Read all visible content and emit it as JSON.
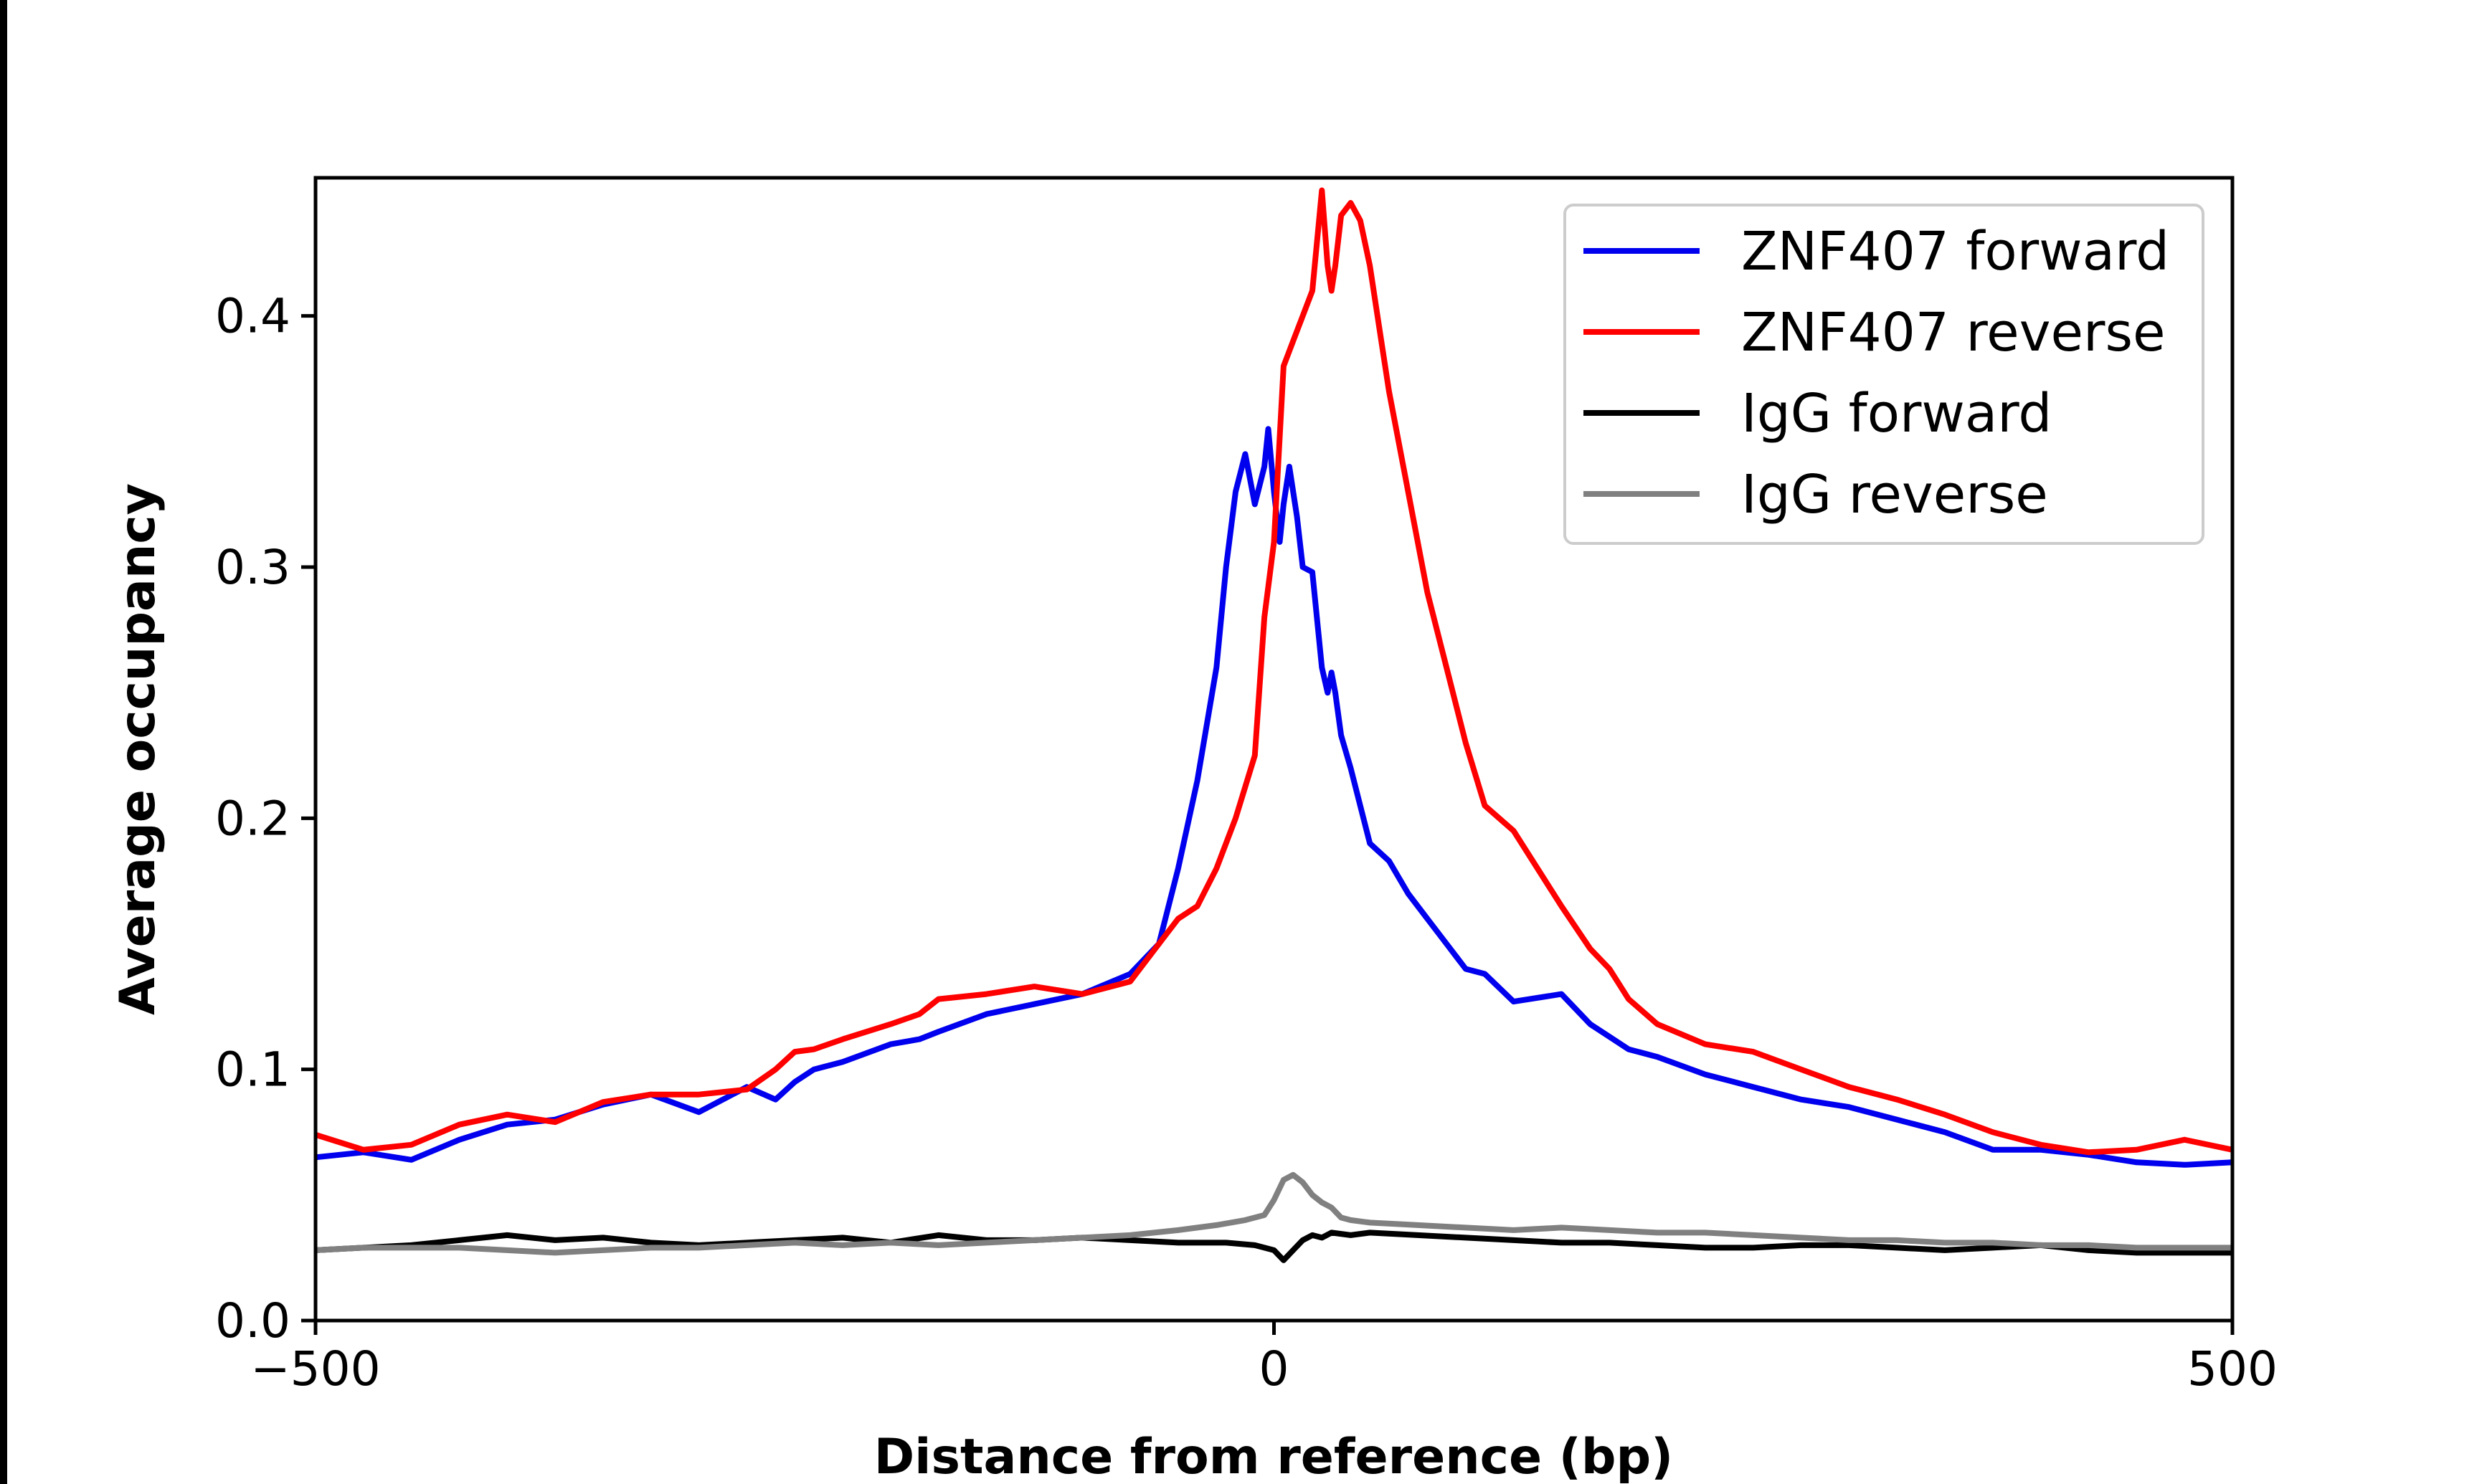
{
  "chart_data": {
    "type": "line",
    "xlabel": "Distance from reference (bp)",
    "ylabel": "Average occupancy",
    "xlim": [
      -500,
      500
    ],
    "ylim": [
      0,
      0.455
    ],
    "x_ticks": [
      -500,
      0,
      500
    ],
    "x_tick_labels": [
      "−500",
      "0",
      "500"
    ],
    "y_ticks": [
      0.0,
      0.1,
      0.2,
      0.3,
      0.4
    ],
    "y_tick_labels": [
      "0.0",
      "0.1",
      "0.2",
      "0.3",
      "0.4"
    ],
    "grid": false,
    "legend_position": "top-right",
    "series": [
      {
        "name": "ZNF407 forward",
        "color": "#0000ee",
        "x": [
          -500,
          -475,
          -450,
          -425,
          -400,
          -375,
          -350,
          -325,
          -300,
          -275,
          -260,
          -250,
          -240,
          -225,
          -200,
          -185,
          -175,
          -150,
          -125,
          -100,
          -75,
          -60,
          -50,
          -40,
          -30,
          -25,
          -20,
          -15,
          -10,
          -5,
          -3,
          0,
          3,
          5,
          8,
          12,
          15,
          20,
          25,
          28,
          30,
          32,
          35,
          40,
          50,
          60,
          70,
          80,
          90,
          100,
          110,
          125,
          150,
          165,
          175,
          185,
          200,
          225,
          250,
          275,
          300,
          325,
          350,
          375,
          400,
          425,
          450,
          475,
          500
        ],
        "y": [
          0.065,
          0.067,
          0.064,
          0.072,
          0.078,
          0.08,
          0.086,
          0.09,
          0.083,
          0.093,
          0.088,
          0.095,
          0.1,
          0.103,
          0.11,
          0.112,
          0.115,
          0.122,
          0.126,
          0.13,
          0.138,
          0.15,
          0.18,
          0.215,
          0.26,
          0.3,
          0.33,
          0.345,
          0.325,
          0.34,
          0.355,
          0.33,
          0.31,
          0.325,
          0.34,
          0.32,
          0.3,
          0.298,
          0.26,
          0.25,
          0.258,
          0.25,
          0.233,
          0.22,
          0.19,
          0.183,
          0.17,
          0.16,
          0.15,
          0.14,
          0.138,
          0.127,
          0.13,
          0.118,
          0.113,
          0.108,
          0.105,
          0.098,
          0.093,
          0.088,
          0.085,
          0.08,
          0.075,
          0.068,
          0.068,
          0.066,
          0.063,
          0.062,
          0.063
        ]
      },
      {
        "name": "ZNF407 reverse",
        "color": "#ff0000",
        "x": [
          -500,
          -475,
          -450,
          -425,
          -400,
          -375,
          -350,
          -325,
          -300,
          -275,
          -260,
          -250,
          -240,
          -225,
          -200,
          -185,
          -175,
          -150,
          -125,
          -100,
          -75,
          -60,
          -50,
          -40,
          -30,
          -20,
          -10,
          -5,
          0,
          5,
          10,
          15,
          20,
          25,
          28,
          30,
          32,
          35,
          40,
          45,
          50,
          55,
          60,
          70,
          80,
          90,
          100,
          110,
          125,
          150,
          165,
          175,
          185,
          200,
          225,
          250,
          275,
          300,
          325,
          350,
          375,
          400,
          425,
          450,
          475,
          500
        ],
        "y": [
          0.074,
          0.068,
          0.07,
          0.078,
          0.082,
          0.079,
          0.087,
          0.09,
          0.09,
          0.092,
          0.1,
          0.107,
          0.108,
          0.112,
          0.118,
          0.122,
          0.128,
          0.13,
          0.133,
          0.13,
          0.135,
          0.15,
          0.16,
          0.165,
          0.18,
          0.2,
          0.225,
          0.28,
          0.31,
          0.38,
          0.39,
          0.4,
          0.41,
          0.45,
          0.42,
          0.41,
          0.42,
          0.44,
          0.445,
          0.438,
          0.42,
          0.395,
          0.37,
          0.33,
          0.29,
          0.26,
          0.23,
          0.205,
          0.195,
          0.165,
          0.148,
          0.14,
          0.128,
          0.118,
          0.11,
          0.107,
          0.1,
          0.093,
          0.088,
          0.082,
          0.075,
          0.07,
          0.067,
          0.068,
          0.072,
          0.068
        ]
      },
      {
        "name": "IgG forward",
        "color": "#000000",
        "x": [
          -500,
          -475,
          -450,
          -425,
          -400,
          -375,
          -350,
          -325,
          -300,
          -275,
          -250,
          -225,
          -200,
          -175,
          -150,
          -125,
          -100,
          -75,
          -50,
          -25,
          -10,
          0,
          5,
          10,
          15,
          20,
          25,
          30,
          40,
          50,
          75,
          100,
          125,
          150,
          175,
          200,
          225,
          250,
          275,
          300,
          325,
          350,
          375,
          400,
          425,
          450,
          475,
          500
        ],
        "y": [
          0.028,
          0.029,
          0.03,
          0.032,
          0.034,
          0.032,
          0.033,
          0.031,
          0.03,
          0.031,
          0.032,
          0.033,
          0.031,
          0.034,
          0.032,
          0.032,
          0.033,
          0.032,
          0.031,
          0.031,
          0.03,
          0.028,
          0.024,
          0.028,
          0.032,
          0.034,
          0.033,
          0.035,
          0.034,
          0.035,
          0.034,
          0.033,
          0.032,
          0.031,
          0.031,
          0.03,
          0.029,
          0.029,
          0.03,
          0.03,
          0.029,
          0.028,
          0.029,
          0.03,
          0.028,
          0.027,
          0.027,
          0.027
        ]
      },
      {
        "name": "IgG reverse",
        "color": "#808080",
        "x": [
          -500,
          -475,
          -450,
          -425,
          -400,
          -375,
          -350,
          -325,
          -300,
          -275,
          -250,
          -225,
          -200,
          -175,
          -150,
          -125,
          -100,
          -75,
          -50,
          -30,
          -15,
          -5,
          0,
          5,
          10,
          15,
          20,
          25,
          30,
          35,
          40,
          50,
          75,
          100,
          125,
          150,
          175,
          200,
          225,
          250,
          275,
          300,
          325,
          350,
          375,
          400,
          425,
          450,
          475,
          500
        ],
        "y": [
          0.028,
          0.029,
          0.029,
          0.029,
          0.028,
          0.027,
          0.028,
          0.029,
          0.029,
          0.03,
          0.031,
          0.03,
          0.031,
          0.03,
          0.031,
          0.032,
          0.033,
          0.034,
          0.036,
          0.038,
          0.04,
          0.042,
          0.048,
          0.056,
          0.058,
          0.055,
          0.05,
          0.047,
          0.045,
          0.041,
          0.04,
          0.039,
          0.038,
          0.037,
          0.036,
          0.037,
          0.036,
          0.035,
          0.035,
          0.034,
          0.033,
          0.032,
          0.032,
          0.031,
          0.031,
          0.03,
          0.03,
          0.029,
          0.029,
          0.029
        ]
      }
    ]
  }
}
